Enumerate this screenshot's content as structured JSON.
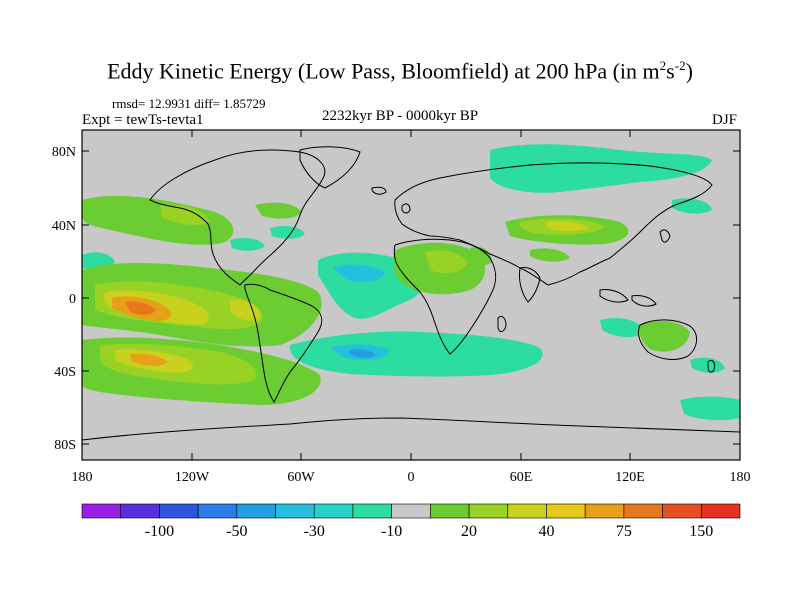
{
  "title_prefix": "Eddy Kinetic Energy (Low Pass, Bloomfield) at 200 hPa (in m",
  "title_sup1": "2",
  "title_mid": "s",
  "title_sup2": "-2",
  "title_suffix": ")",
  "stats_text": "rmsd= 12.9931  diff= 1.85729",
  "experiment_text": "Expt = tewTs-tevta1",
  "period_text": "2232kyr BP - 0000kyr BP",
  "season_text": "DJF",
  "lat_labels": [
    "80N",
    "40N",
    "0",
    "40S",
    "80S"
  ],
  "lon_labels": [
    "180",
    "120W",
    "60W",
    "0",
    "60E",
    "120E",
    "180"
  ],
  "colorbar_labels": [
    "-100",
    "-50",
    "-30",
    "-10",
    "20",
    "40",
    "75",
    "150"
  ],
  "colorbar_colors": [
    "#9a1fe6",
    "#5a2ee0",
    "#2e55e0",
    "#2a7de6",
    "#239fe0",
    "#25bfe0",
    "#24d2c8",
    "#2cdca0",
    "#c8c8c8",
    "#6ccd32",
    "#98d224",
    "#c8d21e",
    "#e6c81a",
    "#e6a019",
    "#e6781c",
    "#e65020",
    "#e63024"
  ],
  "colors": {
    "land_fill": "#c8c8c8",
    "coast_stroke": "#000000"
  }
}
